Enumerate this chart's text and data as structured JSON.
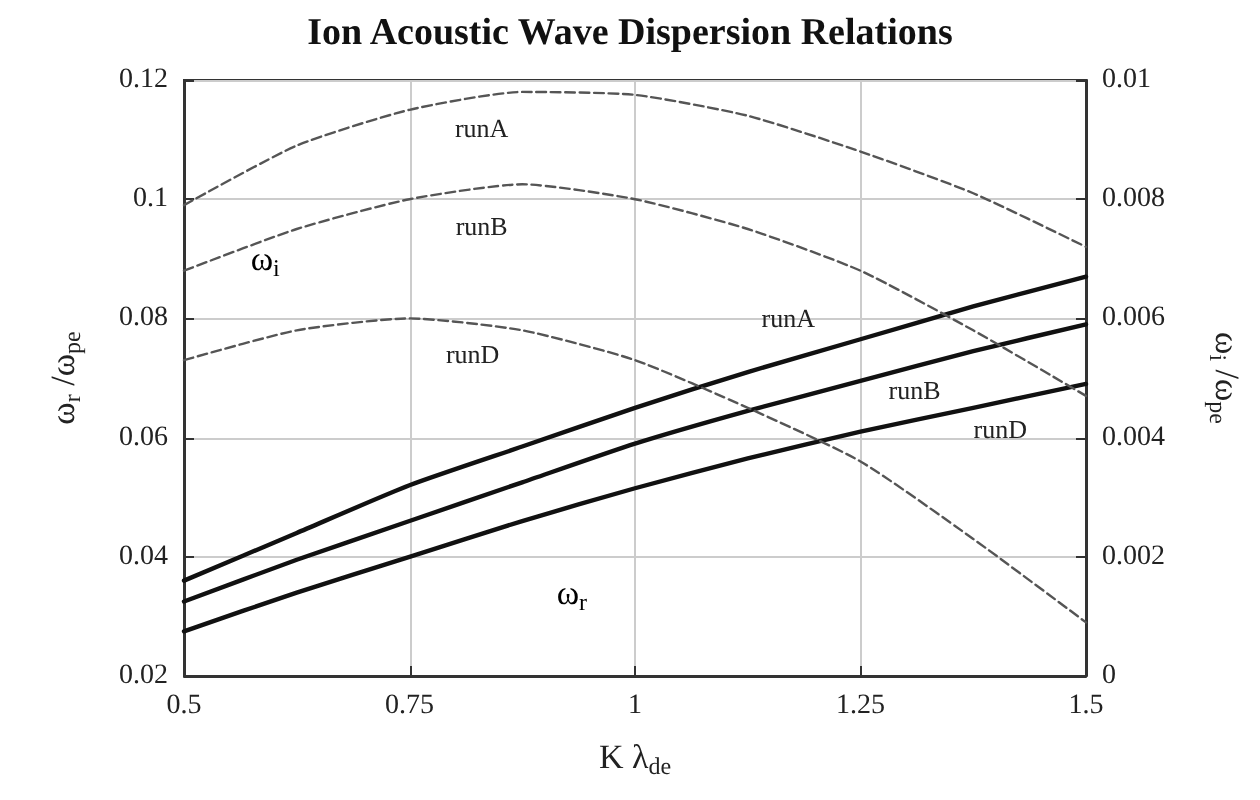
{
  "chart_data": {
    "type": "line",
    "title": "Ion Acoustic Wave Dispersion Relations",
    "xlabel": "K λ$_{de}$",
    "ylabel": "ω$_{r}$ /ω$_{pe}$",
    "y2label": "ω$_{i}$ /ω$_{pe}$",
    "x": [
      0.5,
      0.625,
      0.75,
      0.875,
      1.0,
      1.125,
      1.25,
      1.375,
      1.5
    ],
    "series": [
      {
        "name": "runA",
        "color": "#111111",
        "values": [
          0.036,
          0.044,
          0.052,
          0.0585,
          0.065,
          0.071,
          0.0765,
          0.082,
          0.087
        ]
      },
      {
        "name": "runB",
        "color": "#111111",
        "values": [
          0.0325,
          0.0395,
          0.046,
          0.0525,
          0.059,
          0.0645,
          0.0695,
          0.0745,
          0.079
        ]
      },
      {
        "name": "runD",
        "color": "#111111",
        "values": [
          0.0275,
          0.034,
          0.04,
          0.046,
          0.0515,
          0.0565,
          0.061,
          0.065,
          0.069
        ]
      },
      {
        "name": "runA",
        "color": "#555555",
        "axis": "y2",
        "line_style": "dashed",
        "values": [
          0.0079,
          0.0089,
          0.0095,
          0.0098,
          0.00975,
          0.0094,
          0.0088,
          0.0081,
          0.0072
        ]
      },
      {
        "name": "runB",
        "color": "#555555",
        "axis": "y2",
        "line_style": "dashed",
        "values": [
          0.0068,
          0.0075,
          0.008,
          0.00825,
          0.008,
          0.0075,
          0.0068,
          0.0058,
          0.0047
        ]
      },
      {
        "name": "runD",
        "color": "#555555",
        "axis": "y2",
        "line_style": "dashed",
        "values": [
          0.0053,
          0.0058,
          0.006,
          0.0058,
          0.0053,
          0.0045,
          0.0036,
          0.0023,
          0.0009
        ]
      }
    ],
    "xlim": [
      0.5,
      1.5
    ],
    "xticks": [
      0.5,
      0.75,
      1,
      1.25,
      1.5
    ],
    "ylim": [
      0.02,
      0.12
    ],
    "yticks": [
      0.02,
      0.04,
      0.06,
      0.08,
      0.1,
      0.12
    ],
    "y2lim": [
      0,
      0.01
    ],
    "y2ticks": [
      0,
      0.002,
      0.004,
      0.006,
      0.008,
      0.01
    ],
    "annotations": [
      "ω$_{i}$",
      "ω$_{r}$"
    ],
    "grid": true,
    "marker": "none",
    "legend": false
  }
}
